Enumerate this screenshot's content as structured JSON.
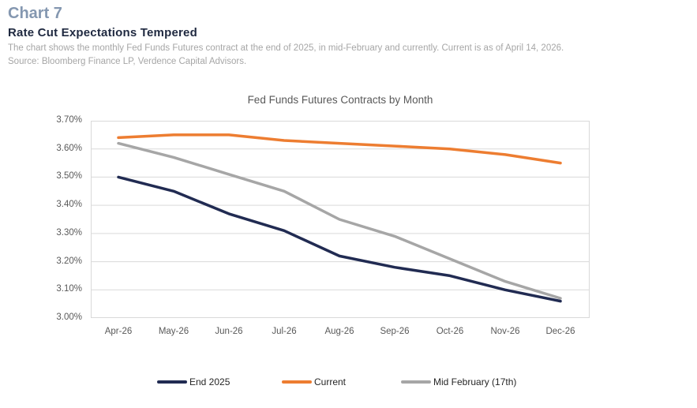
{
  "header": {
    "chart_number": "Chart 7",
    "title": "Rate Cut Expectations Tempered",
    "description": "The chart shows the monthly Fed Funds Futures contract at the end of 2025,  in mid-February and currently.  Current is as of April 14, 2026.",
    "source": "Source: Bloomberg Finance LP, Verdence Capital Advisors."
  },
  "chart_data": {
    "type": "line",
    "title": "Fed Funds Futures Contracts by Month",
    "categories": [
      "Apr-26",
      "May-26",
      "Jun-26",
      "Jul-26",
      "Aug-26",
      "Sep-26",
      "Oct-26",
      "Nov-26",
      "Dec-26"
    ],
    "series": [
      {
        "name": "End 2025",
        "color": "#212B52",
        "values": [
          3.5,
          3.45,
          3.37,
          3.31,
          3.22,
          3.18,
          3.15,
          3.1,
          3.06
        ]
      },
      {
        "name": "Current",
        "color": "#ED7D31",
        "values": [
          3.64,
          3.65,
          3.65,
          3.63,
          3.62,
          3.61,
          3.6,
          3.58,
          3.55
        ]
      },
      {
        "name": "Mid February (17th)",
        "color": "#A6A6A6",
        "values": [
          3.62,
          3.57,
          3.51,
          3.45,
          3.35,
          3.29,
          3.21,
          3.13,
          3.07
        ]
      }
    ],
    "ylim": [
      3.0,
      3.7
    ],
    "ytick_step": 0.1,
    "ytick_format": "0.00%",
    "grid": "horizontal",
    "grid_color": "#D9D9D9",
    "legend_position": "bottom"
  }
}
